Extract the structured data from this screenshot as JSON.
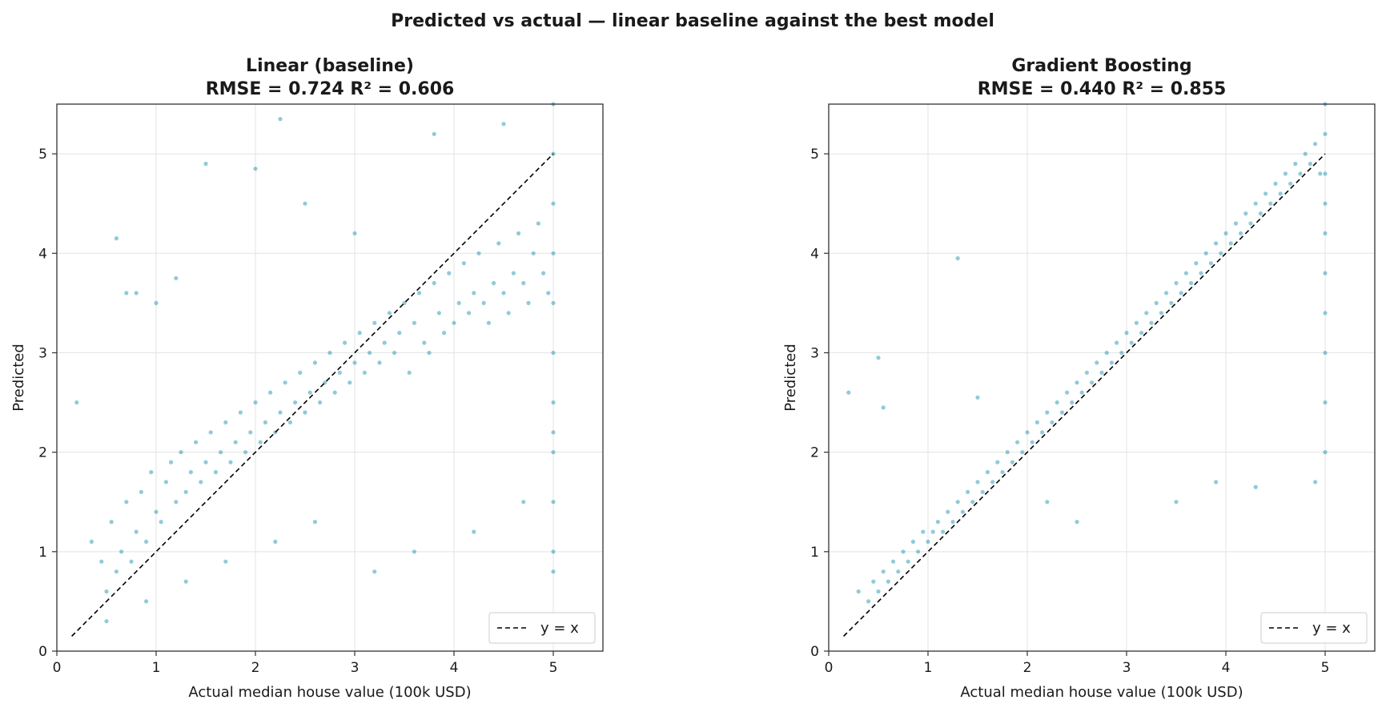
{
  "figure": {
    "title": "Predicted vs actual — linear baseline against the best model"
  },
  "chart_data": [
    {
      "type": "scatter",
      "title": "Linear (baseline)",
      "subtitle": "RMSE = 0.724    R² = 0.606",
      "xlabel": "Actual median house value (100k USD)",
      "ylabel": "Predicted",
      "xlim": [
        0,
        5.5
      ],
      "ylim": [
        0,
        5.5
      ],
      "xticks": [
        0,
        1,
        2,
        3,
        4,
        5
      ],
      "yticks": [
        0,
        1,
        2,
        3,
        4,
        5
      ],
      "grid": true,
      "legend": {
        "position": "bottom-right",
        "entries": [
          "y = x"
        ]
      },
      "reference_line": {
        "label": "y = x",
        "from": [
          0.15,
          0.15
        ],
        "to": [
          5.0,
          5.0
        ],
        "style": "dashed",
        "color": "#000000"
      },
      "marker_color": "#0b8aa8",
      "points_x": [
        0.2,
        0.35,
        0.45,
        0.5,
        0.55,
        0.6,
        0.65,
        0.7,
        0.75,
        0.8,
        0.85,
        0.9,
        0.95,
        1.0,
        1.05,
        1.1,
        1.15,
        1.2,
        1.25,
        1.3,
        1.35,
        1.4,
        1.45,
        1.5,
        1.55,
        1.6,
        1.65,
        1.7,
        1.75,
        1.8,
        1.85,
        1.9,
        1.95,
        2.0,
        2.05,
        2.1,
        2.15,
        2.2,
        2.25,
        2.3,
        2.35,
        2.4,
        2.45,
        2.5,
        2.55,
        2.6,
        2.65,
        2.7,
        2.75,
        2.8,
        2.85,
        2.9,
        2.95,
        3.0,
        3.05,
        3.1,
        3.15,
        3.2,
        3.25,
        3.3,
        3.35,
        3.4,
        3.45,
        3.5,
        3.55,
        3.6,
        3.65,
        3.7,
        3.75,
        3.8,
        3.85,
        3.9,
        3.95,
        4.0,
        4.05,
        4.1,
        4.15,
        4.2,
        4.25,
        4.3,
        4.35,
        4.4,
        4.45,
        4.5,
        4.55,
        4.6,
        4.65,
        4.7,
        4.75,
        4.8,
        4.85,
        4.9,
        4.95,
        5.0,
        5.0,
        5.0,
        5.0,
        5.0,
        5.0,
        5.0,
        5.0,
        5.0,
        5.0,
        5.0,
        5.0,
        0.6,
        0.7,
        0.8,
        1.0,
        1.2,
        2.25,
        2.0,
        1.5,
        2.5,
        3.0,
        3.8,
        4.5,
        0.5,
        0.9,
        1.3,
        1.7,
        2.2,
        2.6,
        3.2,
        3.6,
        4.2,
        4.7
      ],
      "points_y": [
        2.5,
        1.1,
        0.9,
        0.6,
        1.3,
        0.8,
        1.0,
        1.5,
        0.9,
        1.2,
        1.6,
        1.1,
        1.8,
        1.4,
        1.3,
        1.7,
        1.9,
        1.5,
        2.0,
        1.6,
        1.8,
        2.1,
        1.7,
        1.9,
        2.2,
        1.8,
        2.0,
        2.3,
        1.9,
        2.1,
        2.4,
        2.0,
        2.2,
        2.5,
        2.1,
        2.3,
        2.6,
        2.2,
        2.4,
        2.7,
        2.3,
        2.5,
        2.8,
        2.4,
        2.6,
        2.9,
        2.5,
        2.7,
        3.0,
        2.6,
        2.8,
        3.1,
        2.7,
        2.9,
        3.2,
        2.8,
        3.0,
        3.3,
        2.9,
        3.1,
        3.4,
        3.0,
        3.2,
        3.5,
        2.8,
        3.3,
        3.6,
        3.1,
        3.0,
        3.7,
        3.4,
        3.2,
        3.8,
        3.3,
        3.5,
        3.9,
        3.4,
        3.6,
        4.0,
        3.5,
        3.3,
        3.7,
        4.1,
        3.6,
        3.4,
        3.8,
        4.2,
        3.7,
        3.5,
        4.0,
        4.3,
        3.8,
        3.6,
        5.5,
        5.0,
        4.5,
        4.0,
        3.5,
        3.0,
        2.5,
        2.2,
        2.0,
        1.5,
        1.0,
        0.8,
        4.15,
        3.6,
        3.6,
        3.5,
        3.75,
        5.35,
        4.85,
        4.9,
        4.5,
        4.2,
        5.2,
        5.3,
        0.3,
        0.5,
        0.7,
        0.9,
        1.1,
        1.3,
        0.8,
        1.0,
        1.2,
        1.5
      ]
    },
    {
      "type": "scatter",
      "title": "Gradient Boosting",
      "subtitle": "RMSE = 0.440    R² = 0.855",
      "xlabel": "Actual median house value (100k USD)",
      "ylabel": "Predicted",
      "xlim": [
        0,
        5.5
      ],
      "ylim": [
        0,
        5.5
      ],
      "xticks": [
        0,
        1,
        2,
        3,
        4,
        5
      ],
      "yticks": [
        0,
        1,
        2,
        3,
        4,
        5
      ],
      "grid": true,
      "legend": {
        "position": "bottom-right",
        "entries": [
          "y = x"
        ]
      },
      "reference_line": {
        "label": "y = x",
        "from": [
          0.15,
          0.15
        ],
        "to": [
          5.0,
          5.0
        ],
        "style": "dashed",
        "color": "#000000"
      },
      "marker_color": "#0b8aa8",
      "points_x": [
        0.2,
        0.3,
        0.4,
        0.45,
        0.5,
        0.55,
        0.6,
        0.65,
        0.7,
        0.75,
        0.8,
        0.85,
        0.9,
        0.95,
        1.0,
        1.05,
        1.1,
        1.15,
        1.2,
        1.25,
        1.3,
        1.35,
        1.4,
        1.45,
        1.5,
        1.55,
        1.6,
        1.65,
        1.7,
        1.75,
        1.8,
        1.85,
        1.9,
        1.95,
        2.0,
        2.05,
        2.1,
        2.15,
        2.2,
        2.25,
        2.3,
        2.35,
        2.4,
        2.45,
        2.5,
        2.55,
        2.6,
        2.65,
        2.7,
        2.75,
        2.8,
        2.85,
        2.9,
        2.95,
        3.0,
        3.05,
        3.1,
        3.15,
        3.2,
        3.25,
        3.3,
        3.35,
        3.4,
        3.45,
        3.5,
        3.55,
        3.6,
        3.65,
        3.7,
        3.75,
        3.8,
        3.85,
        3.9,
        3.95,
        4.0,
        4.05,
        4.1,
        4.15,
        4.2,
        4.25,
        4.3,
        4.35,
        4.4,
        4.45,
        4.5,
        4.55,
        4.6,
        4.65,
        4.7,
        4.75,
        4.8,
        4.85,
        4.9,
        4.95,
        5.0,
        5.0,
        5.0,
        5.0,
        5.0,
        5.0,
        5.0,
        5.0,
        5.0,
        5.0,
        0.5,
        0.55,
        1.3,
        1.5,
        2.2,
        2.5,
        3.5,
        3.9,
        4.3,
        4.9
      ],
      "points_y": [
        2.6,
        0.6,
        0.5,
        0.7,
        0.6,
        0.8,
        0.7,
        0.9,
        0.8,
        1.0,
        0.9,
        1.1,
        1.0,
        1.2,
        1.1,
        1.2,
        1.3,
        1.2,
        1.4,
        1.3,
        1.5,
        1.4,
        1.6,
        1.5,
        1.7,
        1.6,
        1.8,
        1.7,
        1.9,
        1.8,
        2.0,
        1.9,
        2.1,
        2.0,
        2.2,
        2.1,
        2.3,
        2.2,
        2.4,
        2.3,
        2.5,
        2.4,
        2.6,
        2.5,
        2.7,
        2.6,
        2.8,
        2.7,
        2.9,
        2.8,
        3.0,
        2.9,
        3.1,
        3.0,
        3.2,
        3.1,
        3.3,
        3.2,
        3.4,
        3.3,
        3.5,
        3.4,
        3.6,
        3.5,
        3.7,
        3.6,
        3.8,
        3.7,
        3.9,
        3.8,
        4.0,
        3.9,
        4.1,
        4.0,
        4.2,
        4.1,
        4.3,
        4.2,
        4.4,
        4.3,
        4.5,
        4.4,
        4.6,
        4.5,
        4.7,
        4.6,
        4.8,
        4.7,
        4.9,
        4.8,
        5.0,
        4.9,
        5.1,
        4.8,
        5.5,
        5.2,
        4.8,
        4.5,
        4.2,
        3.8,
        3.4,
        3.0,
        2.5,
        2.0,
        2.95,
        2.45,
        3.95,
        2.55,
        1.5,
        1.3,
        1.5,
        1.7,
        1.65,
        1.7
      ]
    }
  ]
}
